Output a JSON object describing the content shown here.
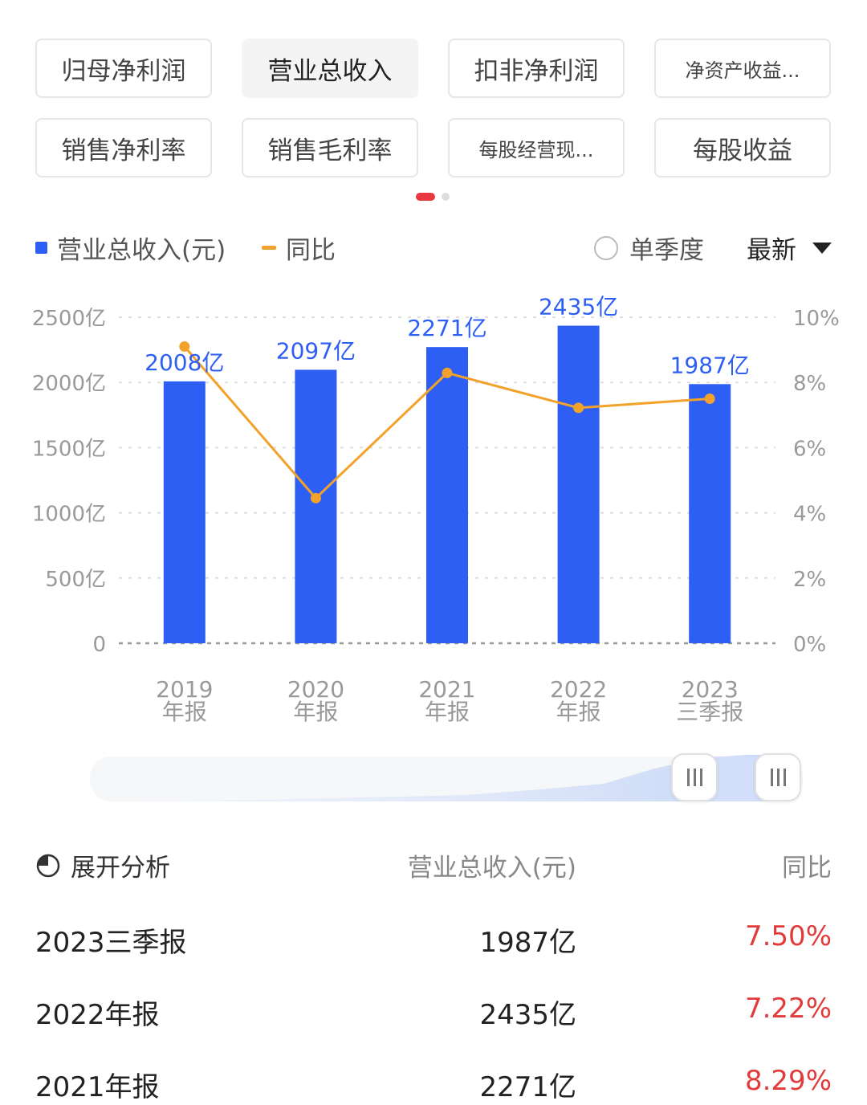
{
  "tabs": [
    {
      "label": "归母净利润",
      "active": false
    },
    {
      "label": "营业总收入",
      "active": true
    },
    {
      "label": "扣非净利润",
      "active": false
    },
    {
      "label": "净资产收益...",
      "active": false
    },
    {
      "label": "销售净利率",
      "active": false
    },
    {
      "label": "销售毛利率",
      "active": false
    },
    {
      "label": "每股经营现...",
      "active": false
    },
    {
      "label": "每股收益",
      "active": false
    }
  ],
  "legend": {
    "bar_label": "营业总收入(元)",
    "line_label": "同比",
    "quarter_toggle": "单季度",
    "range_select": "最新"
  },
  "chart_data": {
    "type": "bar",
    "categories": [
      [
        "2019",
        "年报"
      ],
      [
        "2020",
        "年报"
      ],
      [
        "2021",
        "年报"
      ],
      [
        "2022",
        "年报"
      ],
      [
        "2023",
        "三季报"
      ]
    ],
    "y_left": {
      "ticks": [
        0,
        500,
        1000,
        1500,
        2000,
        2500
      ],
      "tick_labels": [
        "0",
        "500亿",
        "1000亿",
        "1500亿",
        "2000亿",
        "2500亿"
      ],
      "range": [
        0,
        2500
      ]
    },
    "y_right": {
      "ticks": [
        0,
        2,
        4,
        6,
        8,
        10
      ],
      "tick_labels": [
        "0%",
        "2%",
        "4%",
        "6%",
        "8%",
        "10%"
      ],
      "range": [
        0,
        10
      ]
    },
    "series": [
      {
        "name": "营业总收入(元)",
        "type": "bar",
        "axis": "left",
        "values": [
          2008,
          2097,
          2271,
          2435,
          1987
        ],
        "labels": [
          "2008亿",
          "2097亿",
          "2271亿",
          "2435亿",
          "1987亿"
        ],
        "color": "#2e5ff5"
      },
      {
        "name": "同比",
        "type": "line",
        "axis": "right",
        "values": [
          9.1,
          4.45,
          8.29,
          7.22,
          7.5
        ],
        "color": "#f2a22a"
      }
    ],
    "grid": "dashed-horizontal",
    "legend_position": "top-left"
  },
  "table": {
    "expand_label": "展开分析",
    "col_value": "营业总收入(元)",
    "col_yoy": "同比",
    "rows": [
      {
        "period": "2023三季报",
        "value": "1987亿",
        "yoy": "7.50%"
      },
      {
        "period": "2022年报",
        "value": "2435亿",
        "yoy": "7.22%"
      },
      {
        "period": "2021年报",
        "value": "2271亿",
        "yoy": "8.29%"
      }
    ]
  },
  "colors": {
    "accent": "#2e5ff5",
    "line": "#f2a22a",
    "negative_red": "#e23b3b",
    "dot_active": "#e8373e"
  }
}
